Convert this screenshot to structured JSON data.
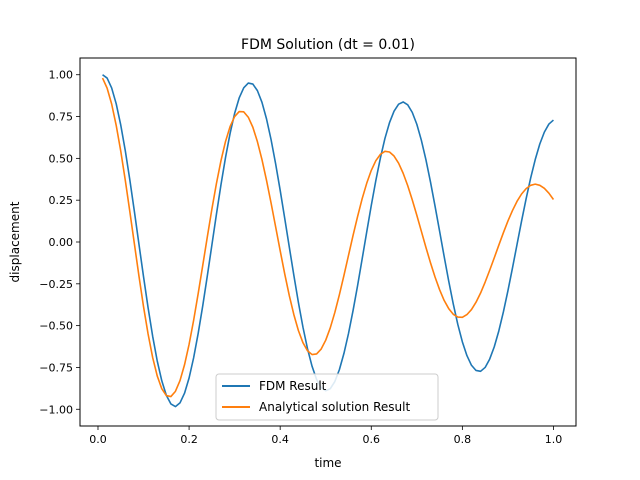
{
  "chart_data": {
    "type": "line",
    "title": "FDM Solution (dt = 0.01)",
    "xlabel": "time",
    "ylabel": "displacement",
    "xlim": [
      -0.0395,
      1.0495
    ],
    "ylim": [
      -1.1,
      1.1
    ],
    "xticks": [
      0.0,
      0.2,
      0.4,
      0.6,
      0.8,
      1.0
    ],
    "xtick_labels": [
      "0.0",
      "0.2",
      "0.4",
      "0.6",
      "0.8",
      "1.0"
    ],
    "yticks": [
      1.0,
      0.75,
      0.5,
      0.25,
      0.0,
      -0.25,
      -0.5,
      -0.75,
      -1.0
    ],
    "ytick_labels": [
      "1.00",
      "0.75",
      "0.50",
      "0.25",
      "0.00",
      "−0.25",
      "−0.50",
      "−0.75",
      "−1.00"
    ],
    "grid": false,
    "legend_position": "bottom-center",
    "series": [
      {
        "name": "FDM Result",
        "color": "#1f77b4",
        "x": [
          0.01,
          0.02,
          0.03,
          0.04,
          0.05,
          0.06,
          0.07,
          0.08,
          0.09,
          0.1,
          0.11,
          0.12,
          0.13,
          0.14,
          0.15,
          0.16,
          0.17,
          0.18,
          0.19,
          0.2,
          0.21,
          0.22,
          0.23,
          0.24,
          0.25,
          0.26,
          0.27,
          0.28,
          0.29,
          0.3,
          0.31,
          0.32,
          0.33,
          0.34,
          0.35,
          0.36,
          0.37,
          0.38,
          0.39,
          0.4,
          0.41,
          0.42,
          0.43,
          0.44,
          0.45,
          0.46,
          0.47,
          0.48,
          0.49,
          0.5,
          0.51,
          0.52,
          0.53,
          0.54,
          0.55,
          0.56,
          0.57,
          0.58,
          0.59,
          0.6,
          0.61,
          0.62,
          0.63,
          0.64,
          0.65,
          0.66,
          0.67,
          0.68,
          0.69,
          0.7,
          0.71,
          0.72,
          0.73,
          0.74,
          0.75,
          0.76,
          0.77,
          0.78,
          0.79,
          0.8,
          0.81,
          0.82,
          0.83,
          0.84,
          0.85,
          0.86,
          0.87,
          0.88,
          0.89,
          0.9,
          0.91,
          0.92,
          0.93,
          0.94,
          0.95,
          0.96,
          0.97,
          0.98,
          0.99,
          1.0
        ],
        "y": [
          1.0,
          0.98,
          0.921,
          0.826,
          0.699,
          0.545,
          0.37,
          0.181,
          -0.014,
          -0.208,
          -0.393,
          -0.563,
          -0.71,
          -0.829,
          -0.916,
          -0.968,
          -0.984,
          -0.962,
          -0.904,
          -0.813,
          -0.692,
          -0.546,
          -0.381,
          -0.203,
          -0.019,
          0.165,
          0.342,
          0.505,
          0.649,
          0.769,
          0.861,
          0.922,
          0.95,
          0.944,
          0.905,
          0.835,
          0.736,
          0.612,
          0.468,
          0.309,
          0.141,
          -0.03,
          -0.199,
          -0.361,
          -0.509,
          -0.638,
          -0.743,
          -0.822,
          -0.871,
          -0.889,
          -0.877,
          -0.834,
          -0.763,
          -0.666,
          -0.547,
          -0.41,
          -0.26,
          -0.101,
          0.06,
          0.218,
          0.367,
          0.502,
          0.619,
          0.713,
          0.782,
          0.824,
          0.837,
          0.82,
          0.775,
          0.704,
          0.608,
          0.492,
          0.359,
          0.215,
          0.065,
          -0.086,
          -0.233,
          -0.37,
          -0.493,
          -0.597,
          -0.679,
          -0.737,
          -0.768,
          -0.773,
          -0.75,
          -0.7,
          -0.627,
          -0.532,
          -0.419,
          -0.292,
          -0.156,
          -0.015,
          0.125,
          0.259,
          0.383,
          0.493,
          0.586,
          0.657,
          0.705,
          0.729
        ]
      },
      {
        "name": "Analytical solution Result",
        "color": "#ff7f0e",
        "x": [
          0.01,
          0.02,
          0.03,
          0.04,
          0.05,
          0.06,
          0.07,
          0.08,
          0.09,
          0.1,
          0.11,
          0.12,
          0.13,
          0.14,
          0.15,
          0.16,
          0.17,
          0.18,
          0.19,
          0.2,
          0.21,
          0.22,
          0.23,
          0.24,
          0.25,
          0.26,
          0.27,
          0.28,
          0.29,
          0.3,
          0.31,
          0.32,
          0.33,
          0.34,
          0.35,
          0.36,
          0.37,
          0.38,
          0.39,
          0.4,
          0.41,
          0.42,
          0.43,
          0.44,
          0.45,
          0.46,
          0.47,
          0.48,
          0.49,
          0.5,
          0.51,
          0.52,
          0.53,
          0.54,
          0.55,
          0.56,
          0.57,
          0.58,
          0.59,
          0.6,
          0.61,
          0.62,
          0.63,
          0.64,
          0.65,
          0.66,
          0.67,
          0.68,
          0.69,
          0.7,
          0.71,
          0.72,
          0.73,
          0.74,
          0.75,
          0.76,
          0.77,
          0.78,
          0.79,
          0.8,
          0.81,
          0.82,
          0.83,
          0.84,
          0.85,
          0.86,
          0.87,
          0.88,
          0.89,
          0.9,
          0.91,
          0.92,
          0.93,
          0.94,
          0.95,
          0.96,
          0.97,
          0.98,
          0.99,
          1.0
        ],
        "y": [
          0.98,
          0.92,
          0.825,
          0.697,
          0.543,
          0.368,
          0.18,
          -0.013,
          -0.205,
          -0.387,
          -0.55,
          -0.69,
          -0.8,
          -0.877,
          -0.918,
          -0.924,
          -0.893,
          -0.829,
          -0.734,
          -0.612,
          -0.468,
          -0.308,
          -0.14,
          0.03,
          0.196,
          0.349,
          0.486,
          0.601,
          0.69,
          0.75,
          0.78,
          0.778,
          0.746,
          0.686,
          0.6,
          0.493,
          0.369,
          0.233,
          0.091,
          -0.052,
          -0.191,
          -0.32,
          -0.434,
          -0.529,
          -0.602,
          -0.65,
          -0.673,
          -0.669,
          -0.64,
          -0.587,
          -0.513,
          -0.421,
          -0.315,
          -0.2,
          -0.08,
          0.039,
          0.153,
          0.259,
          0.351,
          0.428,
          0.486,
          0.524,
          0.542,
          0.538,
          0.514,
          0.471,
          0.411,
          0.337,
          0.252,
          0.16,
          0.064,
          -0.032,
          -0.124,
          -0.209,
          -0.285,
          -0.349,
          -0.398,
          -0.432,
          -0.449,
          -0.45,
          -0.434,
          -0.404,
          -0.36,
          -0.305,
          -0.24,
          -0.169,
          -0.095,
          -0.019,
          0.055,
          0.125,
          0.188,
          0.243,
          0.287,
          0.319,
          0.339,
          0.346,
          0.339,
          0.321,
          0.292,
          0.254
        ]
      }
    ]
  }
}
